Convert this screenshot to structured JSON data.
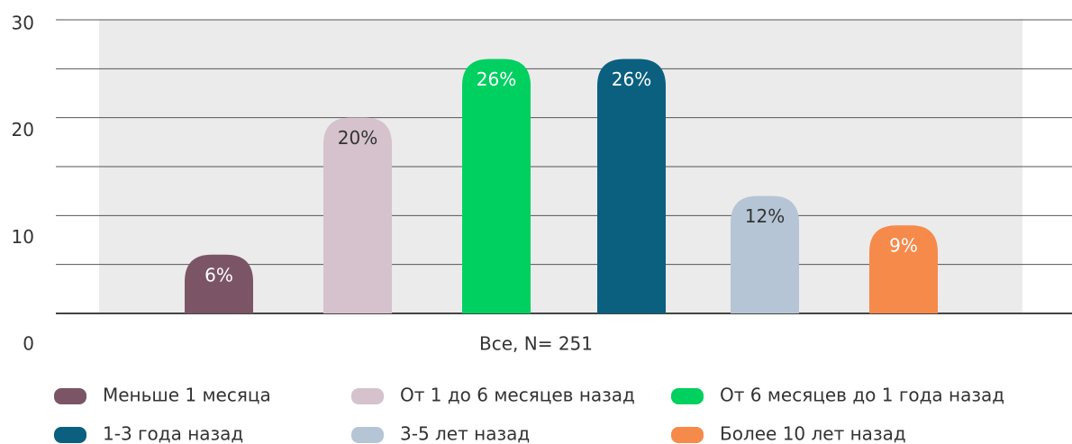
{
  "chart_data": {
    "type": "bar",
    "categories": [
      "Все, N= 251"
    ],
    "series": [
      {
        "name": "Меньше 1 месяца",
        "color": "#7b5566",
        "label_color": "#ffffff",
        "values": [
          6
        ],
        "value_labels": [
          "6%"
        ]
      },
      {
        "name": "От 1 до 6 месяцев назад",
        "color": "#d5c2cc",
        "label_color": "#333333",
        "values": [
          20
        ],
        "value_labels": [
          "20%"
        ]
      },
      {
        "name": "От 6 месяцев до 1 года назад",
        "color": "#00d060",
        "label_color": "#ffffff",
        "values": [
          26
        ],
        "value_labels": [
          "26%"
        ]
      },
      {
        "name": "1-3 года назад",
        "color": "#0b6080",
        "label_color": "#ffffff",
        "values": [
          26
        ],
        "value_labels": [
          "26%"
        ]
      },
      {
        "name": "3-5 лет назад",
        "color": "#b5c5d5",
        "label_color": "#333333",
        "values": [
          12
        ],
        "value_labels": [
          "12%"
        ]
      },
      {
        "name": "Более 10 лет назад",
        "color": "#f58a4b",
        "label_color": "#ffffff",
        "values": [
          9
        ],
        "value_labels": [
          "9%"
        ]
      }
    ],
    "ylim": [
      0,
      30
    ],
    "yticks": [
      0,
      10,
      20,
      30
    ],
    "grid": true
  }
}
